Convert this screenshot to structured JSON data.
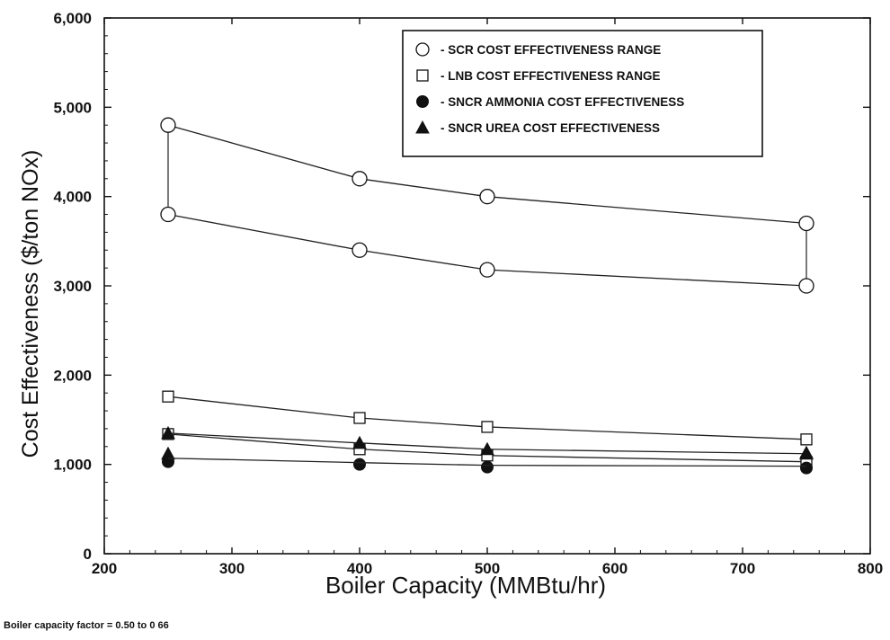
{
  "chart_data": {
    "type": "line",
    "xlabel": "Boiler Capacity (MMBtu/hr)",
    "ylabel": "Cost Effectiveness ($/ton NOx)",
    "xlim": [
      200,
      800
    ],
    "ylim": [
      0,
      6000
    ],
    "x_ticks": [
      "200",
      "300",
      "400",
      "500",
      "600",
      "700",
      "800"
    ],
    "y_ticks": [
      "0",
      "1,000",
      "2,000",
      "3,000",
      "4,000",
      "5,000",
      "6,000"
    ],
    "grid": false,
    "legend_position": "top-right",
    "series": [
      {
        "name": "SCR COST EFFECTIVENESS RANGE",
        "marker": "open-circle",
        "role": "upper",
        "x": [
          250,
          400,
          500,
          750
        ],
        "y": [
          4800,
          4200,
          4000,
          3700
        ]
      },
      {
        "name": "SCR COST EFFECTIVENESS RANGE",
        "marker": "open-circle",
        "role": "lower",
        "x": [
          250,
          400,
          500,
          750
        ],
        "y": [
          3800,
          3400,
          3180,
          3000
        ]
      },
      {
        "name": "LNB COST EFFECTIVENESS RANGE",
        "marker": "open-square",
        "role": "upper",
        "x": [
          250,
          400,
          500,
          750
        ],
        "y": [
          1760,
          1520,
          1420,
          1280
        ]
      },
      {
        "name": "LNB COST EFFECTIVENESS RANGE",
        "marker": "open-square",
        "role": "lower",
        "x": [
          250,
          400,
          500,
          750
        ],
        "y": [
          1340,
          1170,
          1100,
          1030
        ]
      },
      {
        "name": "SNCR AMMONIA COST EFFECTIVENESS",
        "marker": "filled-circle",
        "x": [
          250,
          400,
          500,
          750
        ],
        "y": [
          1030,
          1000,
          970,
          960
        ]
      },
      {
        "name": "SNCR UREA COST EFFECTIVENESS",
        "marker": "filled-triangle",
        "x": [
          250,
          400,
          500,
          750
        ],
        "y": [
          1350,
          1240,
          1170,
          1120
        ]
      },
      {
        "name": "SNCR UREA COST EFFECTIVENESS",
        "marker": "filled-triangle",
        "role": "lower",
        "x": [
          250,
          750
        ],
        "y": [
          1120,
          1130
        ]
      },
      {
        "name": "",
        "marker": "none",
        "x": [
          250,
          400,
          500,
          750
        ],
        "y": [
          1070,
          1020,
          990,
          980
        ]
      }
    ],
    "legend": [
      {
        "marker": "open-circle",
        "label": "- SCR COST EFFECTIVENESS RANGE"
      },
      {
        "marker": "open-square",
        "label": "- LNB COST EFFECTIVENESS RANGE"
      },
      {
        "marker": "filled-circle",
        "label": "- SNCR AMMONIA COST EFFECTIVENESS"
      },
      {
        "marker": "filled-triangle",
        "label": "- SNCR UREA COST EFFECTIVENESS"
      }
    ]
  },
  "footnote": "Boiler capacity factor = 0.50 to 0 66"
}
